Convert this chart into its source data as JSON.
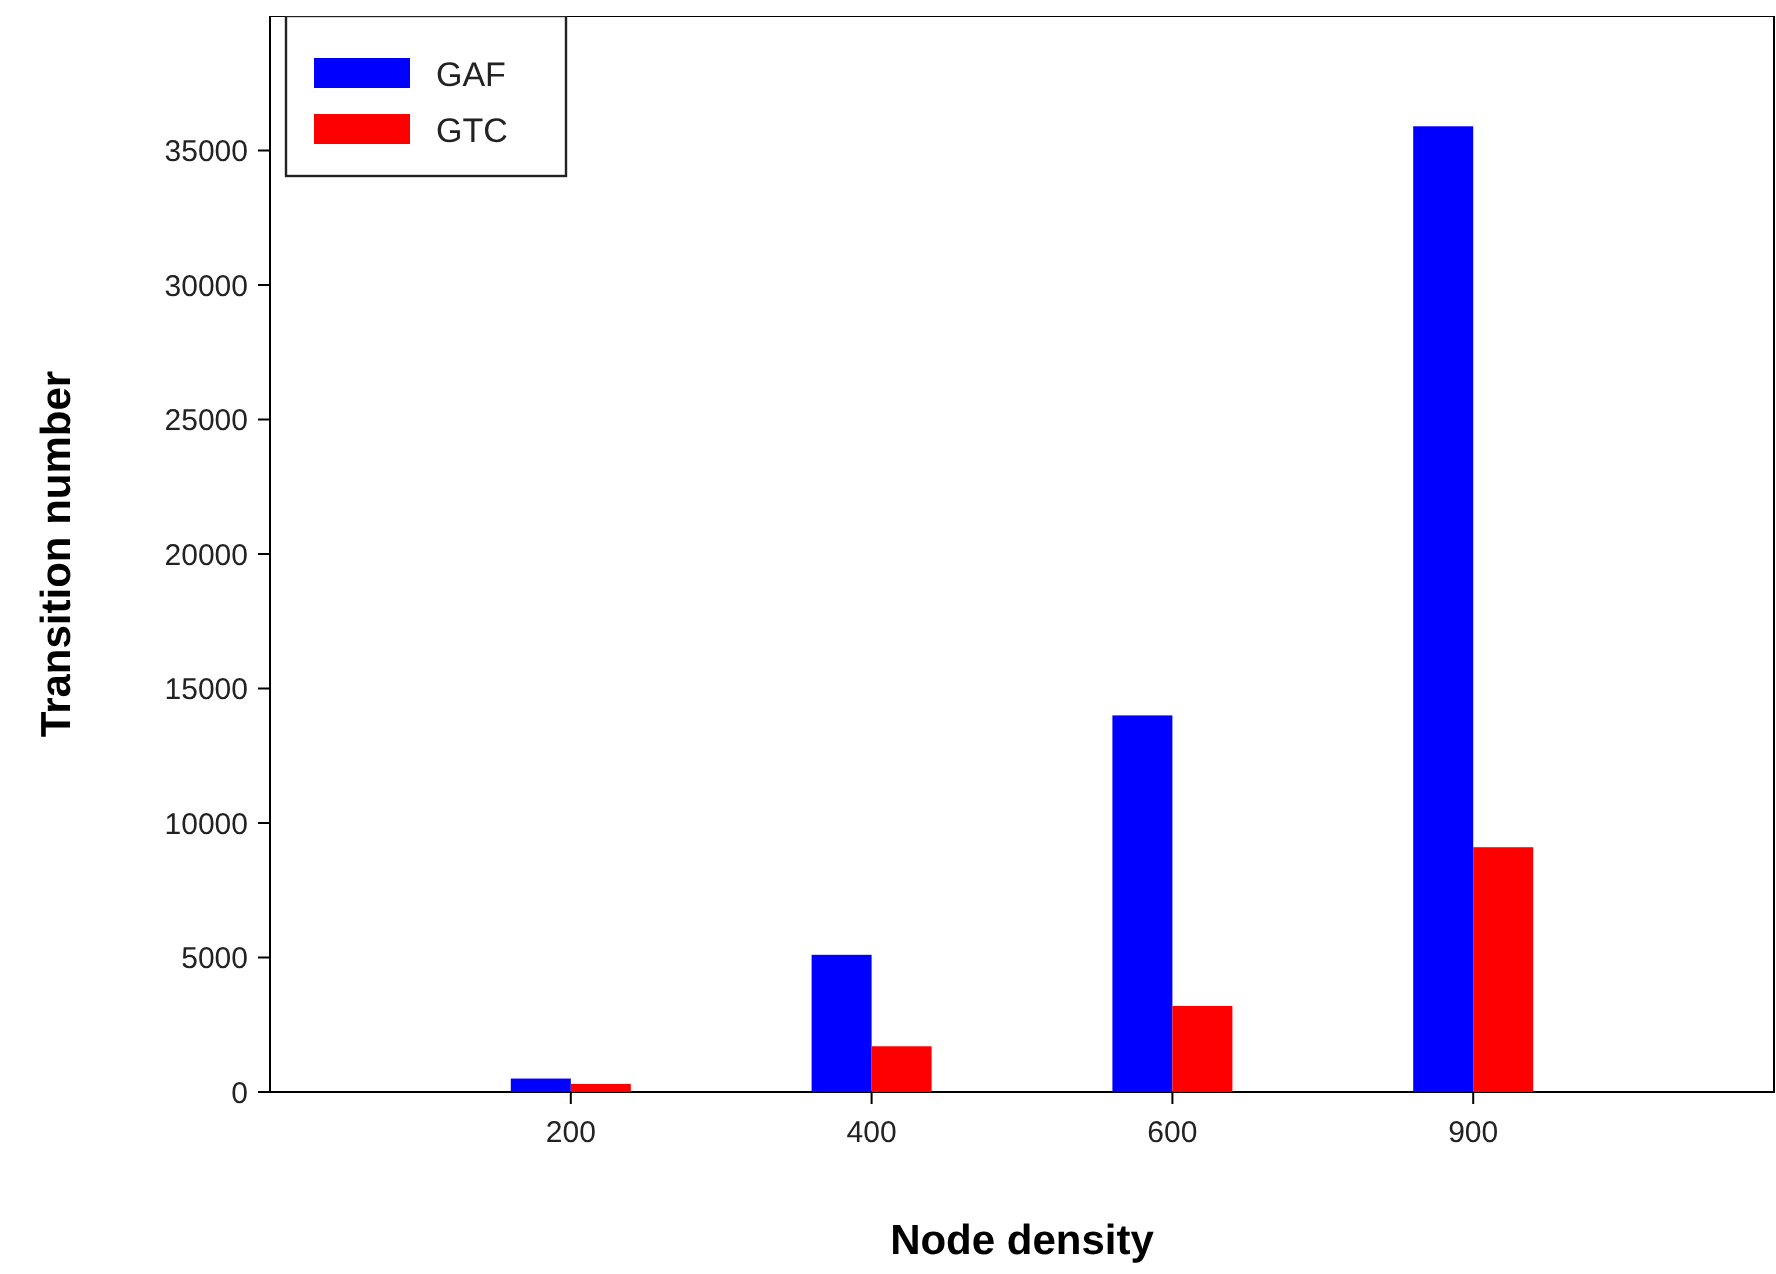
{
  "chart_data": {
    "type": "bar",
    "xlabel": "Node density",
    "ylabel": "Transition number",
    "categories": [
      "200",
      "400",
      "600",
      "900"
    ],
    "series": [
      {
        "name": "GAF",
        "color": "#0000ff",
        "values": [
          500,
          5100,
          14000,
          35900
        ]
      },
      {
        "name": "GTC",
        "color": "#ff0000",
        "values": [
          300,
          1700,
          3200,
          9100
        ]
      }
    ],
    "ylim": [
      0,
      40000
    ],
    "yticks": [
      0,
      5000,
      10000,
      15000,
      20000,
      25000,
      30000,
      35000
    ],
    "grid": false,
    "legend": "top left"
  }
}
